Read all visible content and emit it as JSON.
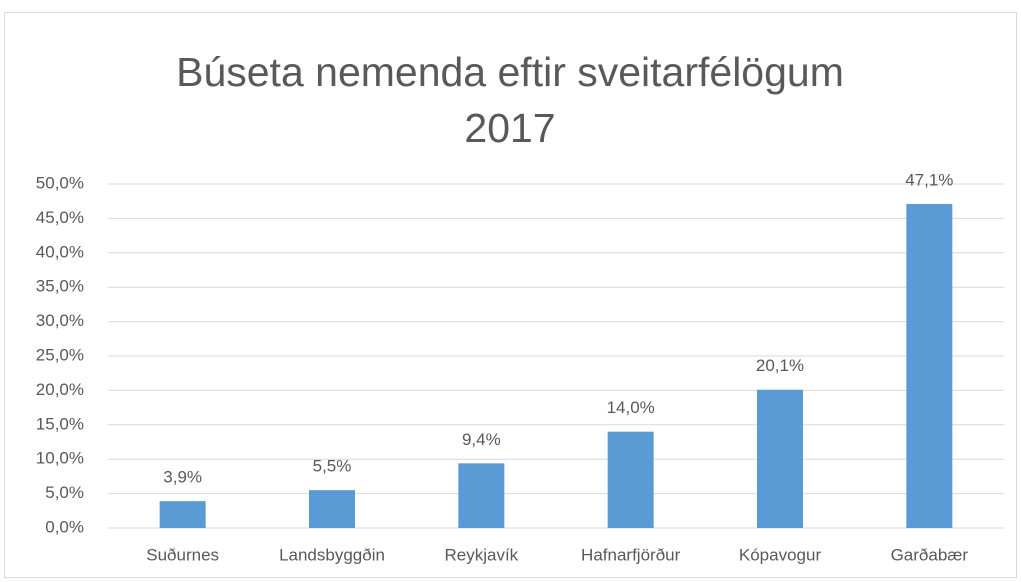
{
  "chart_data": {
    "type": "bar",
    "title": "Búseta nemenda eftir sveitarfélögum 2017",
    "categories": [
      "Suðurnes",
      "Landsbyggðin",
      "Reykjavík",
      "Hafnarfjörður",
      "Kópavogur",
      "Garðabær"
    ],
    "values": [
      3.9,
      5.5,
      9.4,
      14.0,
      20.1,
      47.1
    ],
    "value_labels": [
      "3,9%",
      "5,5%",
      "9,4%",
      "14,0%",
      "20,1%",
      "47,1%"
    ],
    "color": "#5b9bd5",
    "ylim": [
      0,
      50
    ],
    "yticks": [
      {
        "value": 0,
        "label": "0,0%"
      },
      {
        "value": 5,
        "label": "5,0%"
      },
      {
        "value": 10,
        "label": "10,0%"
      },
      {
        "value": 15,
        "label": "15,0%"
      },
      {
        "value": 20,
        "label": "20,0%"
      },
      {
        "value": 25,
        "label": "25,0%"
      },
      {
        "value": 30,
        "label": "30,0%"
      },
      {
        "value": 35,
        "label": "35,0%"
      },
      {
        "value": 40,
        "label": "40,0%"
      },
      {
        "value": 45,
        "label": "45,0%"
      },
      {
        "value": 50,
        "label": "50,0%"
      }
    ],
    "grid": true
  }
}
